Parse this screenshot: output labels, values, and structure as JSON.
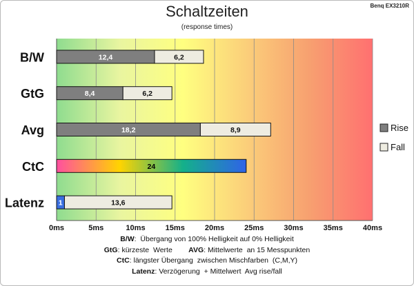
{
  "header": {
    "title": "Schaltzeiten",
    "subtitle": "(response times)",
    "monitor": "Benq EX3210R"
  },
  "colors": {
    "rise": "#7f7f7f",
    "fall": "#eeece1",
    "latency_rise": "#3a6fe0",
    "background_gradient": [
      "#8fdc8f",
      "#e9f5a0",
      "#ffff80",
      "#fbcf7a",
      "#f7a070",
      "#ff7070"
    ],
    "ctc_gradient": [
      "#ff4fa0",
      "#ffd400",
      "#14b08a",
      "#2f63e8"
    ]
  },
  "chart_data": {
    "type": "bar",
    "orientation": "horizontal",
    "stacked": true,
    "categories": [
      "B/W",
      "GtG",
      "Avg",
      "CtC",
      "Latenz"
    ],
    "series": [
      {
        "name": "Rise",
        "values": [
          12.4,
          8.4,
          18.2,
          24,
          1
        ]
      },
      {
        "name": "Fall",
        "values": [
          6.2,
          6.2,
          8.9,
          null,
          13.6
        ]
      }
    ],
    "data_labels": {
      "Rise": [
        "12,4",
        "8,4",
        "18,2",
        "24",
        "1"
      ],
      "Fall": [
        "6,2",
        "6,2",
        "8,9",
        "",
        "13,6"
      ]
    },
    "x_ticks": [
      0,
      5,
      10,
      15,
      20,
      25,
      30,
      35,
      40
    ],
    "x_tick_labels": [
      "0ms",
      "5ms",
      "10ms",
      "15ms",
      "20ms",
      "25ms",
      "30ms",
      "35ms",
      "40ms"
    ],
    "xlim": [
      0,
      40
    ],
    "xlabel": "",
    "ylabel": "",
    "grid": true,
    "legend": {
      "position": "right",
      "entries": [
        "Rise",
        "Fall"
      ]
    }
  },
  "footnotes": [
    {
      "key": "B/W",
      "sep": ":  ",
      "text": "Übergang von 100% Helligkeit auf 0% Helligkeit"
    },
    {
      "key": "GtG",
      "sep": ": ",
      "text": "kürzeste  Werte",
      "key2": "AVG",
      "sep2": ": ",
      "text2": "Mittelwerte  an 15 Messpunkten"
    },
    {
      "key": "CtC",
      "sep": ": ",
      "text": "längster Übergang  zwischen Mischfarben  (C,M,Y)"
    },
    {
      "key": "Latenz",
      "sep": ": ",
      "text": "Verzögerung  + Mittelwert  Avg rise/fall"
    }
  ]
}
